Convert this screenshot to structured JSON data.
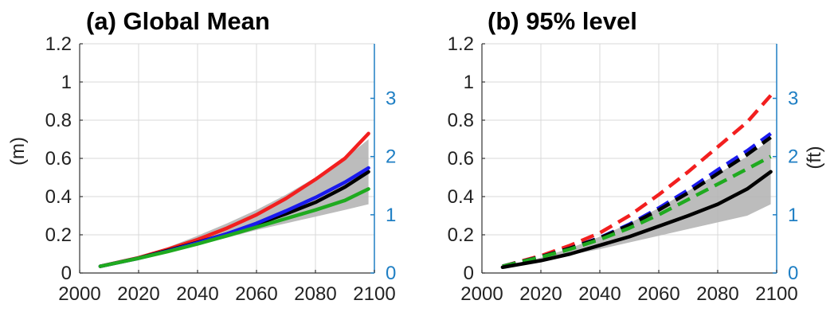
{
  "colors": {
    "red": "#f21f1f",
    "blue": "#1a1aee",
    "green": "#1faa1f",
    "black": "#000000",
    "band": "#b0b0b0",
    "right_axis": "#1f7fc4"
  },
  "chart_data": [
    {
      "type": "line",
      "title": "(a) Global Mean",
      "ylabel": "(m)",
      "ylabel_right": "",
      "xlim": [
        2000,
        2100
      ],
      "ylim": [
        0,
        1.2
      ],
      "x_ticks": [
        "2000",
        "2020",
        "2040",
        "2060",
        "2080",
        "2100"
      ],
      "y_ticks": [
        "0",
        "0.2",
        "0.4",
        "0.6",
        "0.8",
        "1",
        "1.2"
      ],
      "right_axis_ticks": [
        "0",
        "1",
        "2",
        "3"
      ],
      "right_axis_unit_ft_per_m": 3.28084,
      "grid": true,
      "band": {
        "x": [
          2007,
          2020,
          2030,
          2040,
          2050,
          2060,
          2070,
          2080,
          2090,
          2098
        ],
        "lower": [
          0.035,
          0.072,
          0.105,
          0.145,
          0.185,
          0.225,
          0.26,
          0.295,
          0.33,
          0.36
        ],
        "upper": [
          0.035,
          0.085,
          0.135,
          0.195,
          0.26,
          0.33,
          0.41,
          0.5,
          0.6,
          0.7
        ]
      },
      "series": [
        {
          "color": "red",
          "dashed": false,
          "x": [
            2007,
            2020,
            2030,
            2040,
            2050,
            2060,
            2070,
            2080,
            2090,
            2098
          ],
          "y": [
            0.035,
            0.08,
            0.125,
            0.175,
            0.235,
            0.305,
            0.39,
            0.49,
            0.6,
            0.73
          ]
        },
        {
          "color": "black",
          "dashed": false,
          "x": [
            2007,
            2020,
            2030,
            2040,
            2050,
            2060,
            2070,
            2080,
            2090,
            2098
          ],
          "y": [
            0.035,
            0.078,
            0.118,
            0.16,
            0.205,
            0.255,
            0.31,
            0.37,
            0.45,
            0.53
          ]
        },
        {
          "color": "blue",
          "dashed": false,
          "x": [
            2007,
            2020,
            2030,
            2040,
            2050,
            2060,
            2070,
            2080,
            2090,
            2098
          ],
          "y": [
            0.035,
            0.077,
            0.115,
            0.158,
            0.205,
            0.26,
            0.325,
            0.395,
            0.475,
            0.55
          ]
        },
        {
          "color": "green",
          "dashed": false,
          "x": [
            2007,
            2020,
            2030,
            2040,
            2050,
            2060,
            2070,
            2080,
            2090,
            2098
          ],
          "y": [
            0.035,
            0.077,
            0.113,
            0.152,
            0.195,
            0.24,
            0.285,
            0.33,
            0.38,
            0.44
          ]
        }
      ]
    },
    {
      "type": "line",
      "title": "(b) 95% level",
      "ylabel": "",
      "ylabel_right": "(ft)",
      "xlim": [
        2000,
        2100
      ],
      "ylim": [
        0,
        1.2
      ],
      "x_ticks": [
        "2000",
        "2020",
        "2040",
        "2060",
        "2080",
        "2100"
      ],
      "y_ticks": [
        "0",
        "0.2",
        "0.4",
        "0.6",
        "0.8",
        "1",
        "1.2"
      ],
      "right_axis_ticks": [
        "0",
        "1",
        "2",
        "3"
      ],
      "right_axis_unit_ft_per_m": 3.28084,
      "grid": true,
      "band": {
        "x": [
          2007,
          2020,
          2030,
          2040,
          2050,
          2060,
          2070,
          2080,
          2090,
          2098
        ],
        "lower": [
          0.03,
          0.065,
          0.095,
          0.125,
          0.16,
          0.195,
          0.23,
          0.265,
          0.3,
          0.36
        ],
        "upper": [
          0.03,
          0.08,
          0.13,
          0.19,
          0.26,
          0.34,
          0.43,
          0.52,
          0.61,
          0.7
        ]
      },
      "series": [
        {
          "color": "red",
          "dashed": true,
          "x": [
            2007,
            2020,
            2030,
            2040,
            2050,
            2060,
            2070,
            2080,
            2090,
            2098
          ],
          "y": [
            0.035,
            0.09,
            0.145,
            0.21,
            0.3,
            0.41,
            0.53,
            0.66,
            0.79,
            0.93
          ]
        },
        {
          "color": "blue",
          "dashed": true,
          "x": [
            2007,
            2020,
            2030,
            2040,
            2050,
            2060,
            2070,
            2080,
            2090,
            2098
          ],
          "y": [
            0.035,
            0.085,
            0.13,
            0.185,
            0.255,
            0.34,
            0.435,
            0.54,
            0.64,
            0.73
          ]
        },
        {
          "color": "black",
          "dashed": true,
          "x": [
            2007,
            2020,
            2030,
            2040,
            2050,
            2060,
            2070,
            2080,
            2090,
            2098
          ],
          "y": [
            0.035,
            0.085,
            0.13,
            0.183,
            0.25,
            0.33,
            0.42,
            0.52,
            0.62,
            0.71
          ]
        },
        {
          "color": "green",
          "dashed": true,
          "x": [
            2007,
            2020,
            2030,
            2040,
            2050,
            2060,
            2070,
            2080,
            2090,
            2098
          ],
          "y": [
            0.035,
            0.083,
            0.125,
            0.175,
            0.235,
            0.305,
            0.385,
            0.465,
            0.545,
            0.61
          ]
        },
        {
          "color": "black",
          "dashed": false,
          "x": [
            2007,
            2020,
            2030,
            2040,
            2050,
            2060,
            2070,
            2080,
            2090,
            2098
          ],
          "y": [
            0.03,
            0.065,
            0.1,
            0.145,
            0.19,
            0.245,
            0.3,
            0.36,
            0.44,
            0.53
          ]
        }
      ]
    }
  ]
}
